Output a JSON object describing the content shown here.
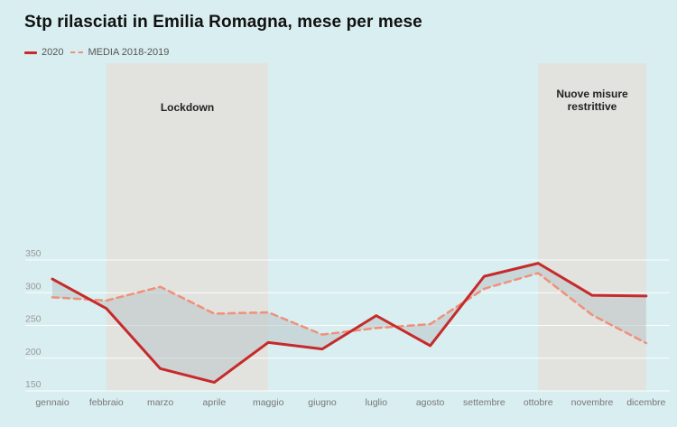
{
  "chart_data": {
    "type": "line",
    "title": "Stp rilasciati in Emilia Romagna, mese per mese",
    "categories": [
      "gennaio",
      "febbraio",
      "marzo",
      "aprile",
      "maggio",
      "giugno",
      "luglio",
      "agosto",
      "settembre",
      "ottobre",
      "novembre",
      "dicembre"
    ],
    "series": [
      {
        "name": "2020",
        "values": [
          321,
          276,
          184,
          163,
          224,
          214,
          265,
          219,
          325,
          345,
          296,
          295
        ],
        "color": "#c62a2a",
        "style": "solid"
      },
      {
        "name": "MEDIA 2018-2019",
        "values": [
          293,
          288,
          309,
          268,
          270,
          236,
          246,
          252,
          306,
          330,
          266,
          223
        ],
        "color": "#f0907a",
        "style": "dashed"
      }
    ],
    "yticks": [
      150,
      200,
      250,
      300,
      350
    ],
    "ylim": [
      150,
      370
    ],
    "grid": true,
    "legend_position": "top-left",
    "annotations": [
      {
        "label_lines": [
          "Lockdown"
        ],
        "from_category": "febbraio",
        "to_category": "maggio"
      },
      {
        "label_lines": [
          "Nuove misure",
          "restrittive"
        ],
        "from_category": "ottobre",
        "to_category": "dicembre"
      }
    ],
    "band_color": "#e2e2de",
    "fill_between_color": "#b9c6c8"
  }
}
